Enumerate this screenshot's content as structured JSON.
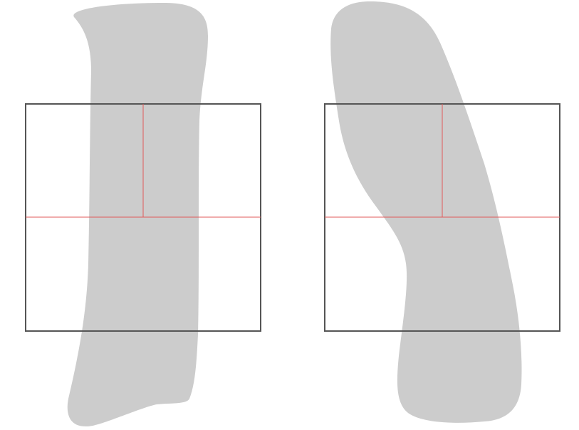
{
  "diagram": {
    "panels": [
      {
        "name": "panel-left"
      },
      {
        "name": "panel-right"
      }
    ],
    "colors": {
      "shape_fill": "#cccccc",
      "frame_stroke": "#555555",
      "line_stroke": "#e05a5a",
      "background": "#ffffff"
    }
  }
}
